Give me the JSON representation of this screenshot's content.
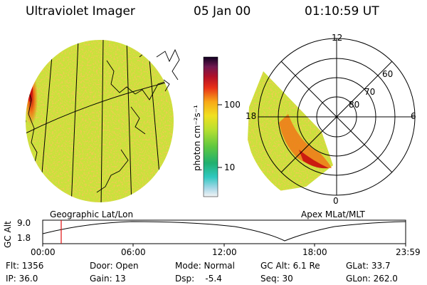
{
  "header": {
    "instrument": "Ultraviolet Imager",
    "date": "05 Jan 00",
    "time": "01:10:59 UT"
  },
  "colorbar": {
    "unit_label": "photon cm⁻²s⁻¹",
    "ticks": [
      "100",
      "10"
    ],
    "scale": "log"
  },
  "geo_map": {
    "caption": "Geographic Lat/Lon"
  },
  "polar_plot": {
    "caption": "Apex MLat/MLT",
    "mlt_labels": [
      "12",
      "18",
      "6",
      "0"
    ],
    "mlat_labels": [
      "60",
      "70",
      "80"
    ]
  },
  "altitude_plot": {
    "ylabel": "GC Alt",
    "yticks": [
      "9.0",
      "1.8"
    ],
    "xticks": [
      "00:00",
      "06:00",
      "12:00",
      "18:00",
      "23:59"
    ],
    "current_time_marker": "01:10"
  },
  "status": {
    "flt": "Flt: 1356",
    "ip": "IP: 36.0",
    "door": "Door: Open",
    "gain": "Gain: 13",
    "mode": "Mode: Normal",
    "dsp": "Dsp:    -5.4",
    "gc_alt": "GC Alt: 6.1 Re",
    "seq": "Seq: 30",
    "glat": "GLat: 33.7",
    "glon": "GLon: 262.0"
  },
  "colors": {
    "background": "#ffffff",
    "image_base": "#c8e23a",
    "aurora_red": "#d81c10",
    "aurora_orange": "#f08a10"
  }
}
